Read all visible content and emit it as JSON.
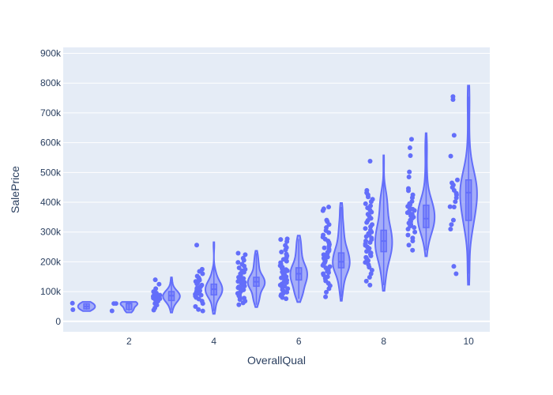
{
  "chart_data": {
    "type": "violin",
    "title": "",
    "xlabel": "OverallQual",
    "ylabel": "SalePrice",
    "xlim": [
      0.45,
      10.5
    ],
    "ylim": [
      -35000,
      920000
    ],
    "xticks": [
      2,
      4,
      6,
      8,
      10
    ],
    "xtick_labels": [
      "2",
      "4",
      "6",
      "8",
      "10"
    ],
    "yticks": [
      0,
      100000,
      200000,
      300000,
      400000,
      500000,
      600000,
      700000,
      800000,
      900000
    ],
    "ytick_labels": [
      "0",
      "100k",
      "200k",
      "300k",
      "400k",
      "500k",
      "600k",
      "700k",
      "800k",
      "900k"
    ],
    "grid": true,
    "colors": {
      "fill": "#636efa",
      "plot_bg": "#e5ecf6",
      "grid": "#ffffff",
      "text": "#2a3f5f"
    },
    "series": [
      {
        "quality": 1,
        "min": 39300,
        "q1": 42000,
        "median": 50150,
        "q3": 59000,
        "max": 61000,
        "points": [
          61000,
          39300
        ]
      },
      {
        "quality": 2,
        "min": 35300,
        "q1": 40000,
        "median": 60000,
        "q3": 60000,
        "max": 60000,
        "points": [
          60000,
          60000,
          35300
        ]
      },
      {
        "quality": 3,
        "min": 37900,
        "q1": 70000,
        "median": 86250,
        "q3": 100000,
        "max": 139600,
        "points": [
          139600,
          125000,
          110000,
          100000,
          95000,
          92000,
          90000,
          88000,
          86000,
          84000,
          82000,
          80000,
          78000,
          76000,
          72000,
          68000,
          60000,
          55000,
          45000,
          37900
        ]
      },
      {
        "quality": 4,
        "min": 34900,
        "q1": 89000,
        "median": 108000,
        "q3": 125000,
        "max": 256000,
        "points": [
          256000,
          175000,
          168000,
          160000,
          152000,
          147000,
          142000,
          138000,
          134000,
          130000,
          126000,
          122000,
          118000,
          115000,
          112000,
          109000,
          106000,
          103000,
          100000,
          97000,
          94000,
          91000,
          88000,
          85000,
          80000,
          75000,
          68000,
          60000,
          50000,
          40000,
          34900
        ]
      },
      {
        "quality": 5,
        "min": 55993,
        "q1": 118000,
        "median": 133000,
        "q3": 148000,
        "max": 228950,
        "points": [
          228950,
          224000,
          212000,
          205000,
          198000,
          192000,
          186000,
          180000,
          175000,
          170000,
          165000,
          160000,
          156000,
          152000,
          148000,
          144000,
          140000,
          137000,
          134000,
          131000,
          128000,
          125000,
          122000,
          119000,
          116000,
          113000,
          110000,
          106000,
          102000,
          98000,
          94000,
          90000,
          86000,
          82000,
          78000,
          73000,
          68000,
          62000,
          55993
        ]
      },
      {
        "quality": 6,
        "min": 76000,
        "q1": 139000,
        "median": 160000,
        "q3": 180000,
        "max": 277000,
        "points": [
          277000,
          275000,
          268000,
          255000,
          248000,
          240000,
          233000,
          226000,
          220000,
          214000,
          208000,
          202000,
          197000,
          192000,
          187000,
          182000,
          178000,
          174000,
          170000,
          166000,
          162000,
          158000,
          154000,
          150000,
          146000,
          142000,
          138000,
          134000,
          130000,
          126000,
          122000,
          118000,
          114000,
          110000,
          106000,
          102000,
          98000,
          94000,
          90000,
          86000,
          80000,
          76000
        ]
      },
      {
        "quality": 7,
        "min": 82500,
        "q1": 179900,
        "median": 200141,
        "q3": 230000,
        "max": 383970,
        "points": [
          383970,
          378000,
          372000,
          340000,
          335000,
          325000,
          315000,
          305000,
          298000,
          290000,
          283000,
          276000,
          270000,
          264000,
          258000,
          252000,
          247000,
          242000,
          237000,
          232000,
          228000,
          224000,
          220000,
          216000,
          212000,
          208000,
          204000,
          200000,
          196000,
          192000,
          188000,
          184000,
          180000,
          176000,
          172000,
          168000,
          164000,
          160000,
          156000,
          150000,
          144000,
          136000,
          128000,
          120000,
          110000,
          98000,
          82500
        ]
      },
      {
        "quality": 8,
        "min": 122000,
        "q1": 234000,
        "median": 269750,
        "q3": 306000,
        "max": 538000,
        "points": [
          538000,
          440000,
          432000,
          425000,
          418000,
          410000,
          402000,
          395000,
          388000,
          381000,
          374000,
          367000,
          360000,
          353000,
          346000,
          339000,
          332000,
          325000,
          318000,
          312000,
          306000,
          300000,
          295000,
          290000,
          285000,
          280000,
          275000,
          270000,
          265000,
          260000,
          255000,
          250000,
          245000,
          240000,
          235000,
          230000,
          225000,
          220000,
          215000,
          210000,
          204000,
          198000,
          190000,
          182000,
          172000,
          160000,
          148000,
          135000,
          122000
        ]
      },
      {
        "quality": 9,
        "min": 239000,
        "q1": 315000,
        "median": 345000,
        "q3": 390000,
        "max": 611657,
        "points": [
          611657,
          582933,
          556581,
          501837,
          485000,
          446261,
          438780,
          424870,
          415298,
          402861,
          395192,
          392000,
          386250,
          381000,
          377000,
          372500,
          369000,
          365000,
          360000,
          355000,
          350000,
          345000,
          340000,
          335000,
          330000,
          325000,
          320000,
          315000,
          310000,
          300000,
          290000,
          280000,
          270000,
          256000,
          239000
        ]
      },
      {
        "quality": 10,
        "min": 160000,
        "q1": 339000,
        "median": 432390,
        "q3": 475000,
        "max": 755000,
        "points": [
          755000,
          745000,
          625000,
          555000,
          475000,
          465000,
          458000,
          450000,
          440000,
          430000,
          425000,
          415000,
          402000,
          385000,
          384000,
          340000,
          325000,
          310000,
          184750,
          160000
        ]
      }
    ]
  }
}
